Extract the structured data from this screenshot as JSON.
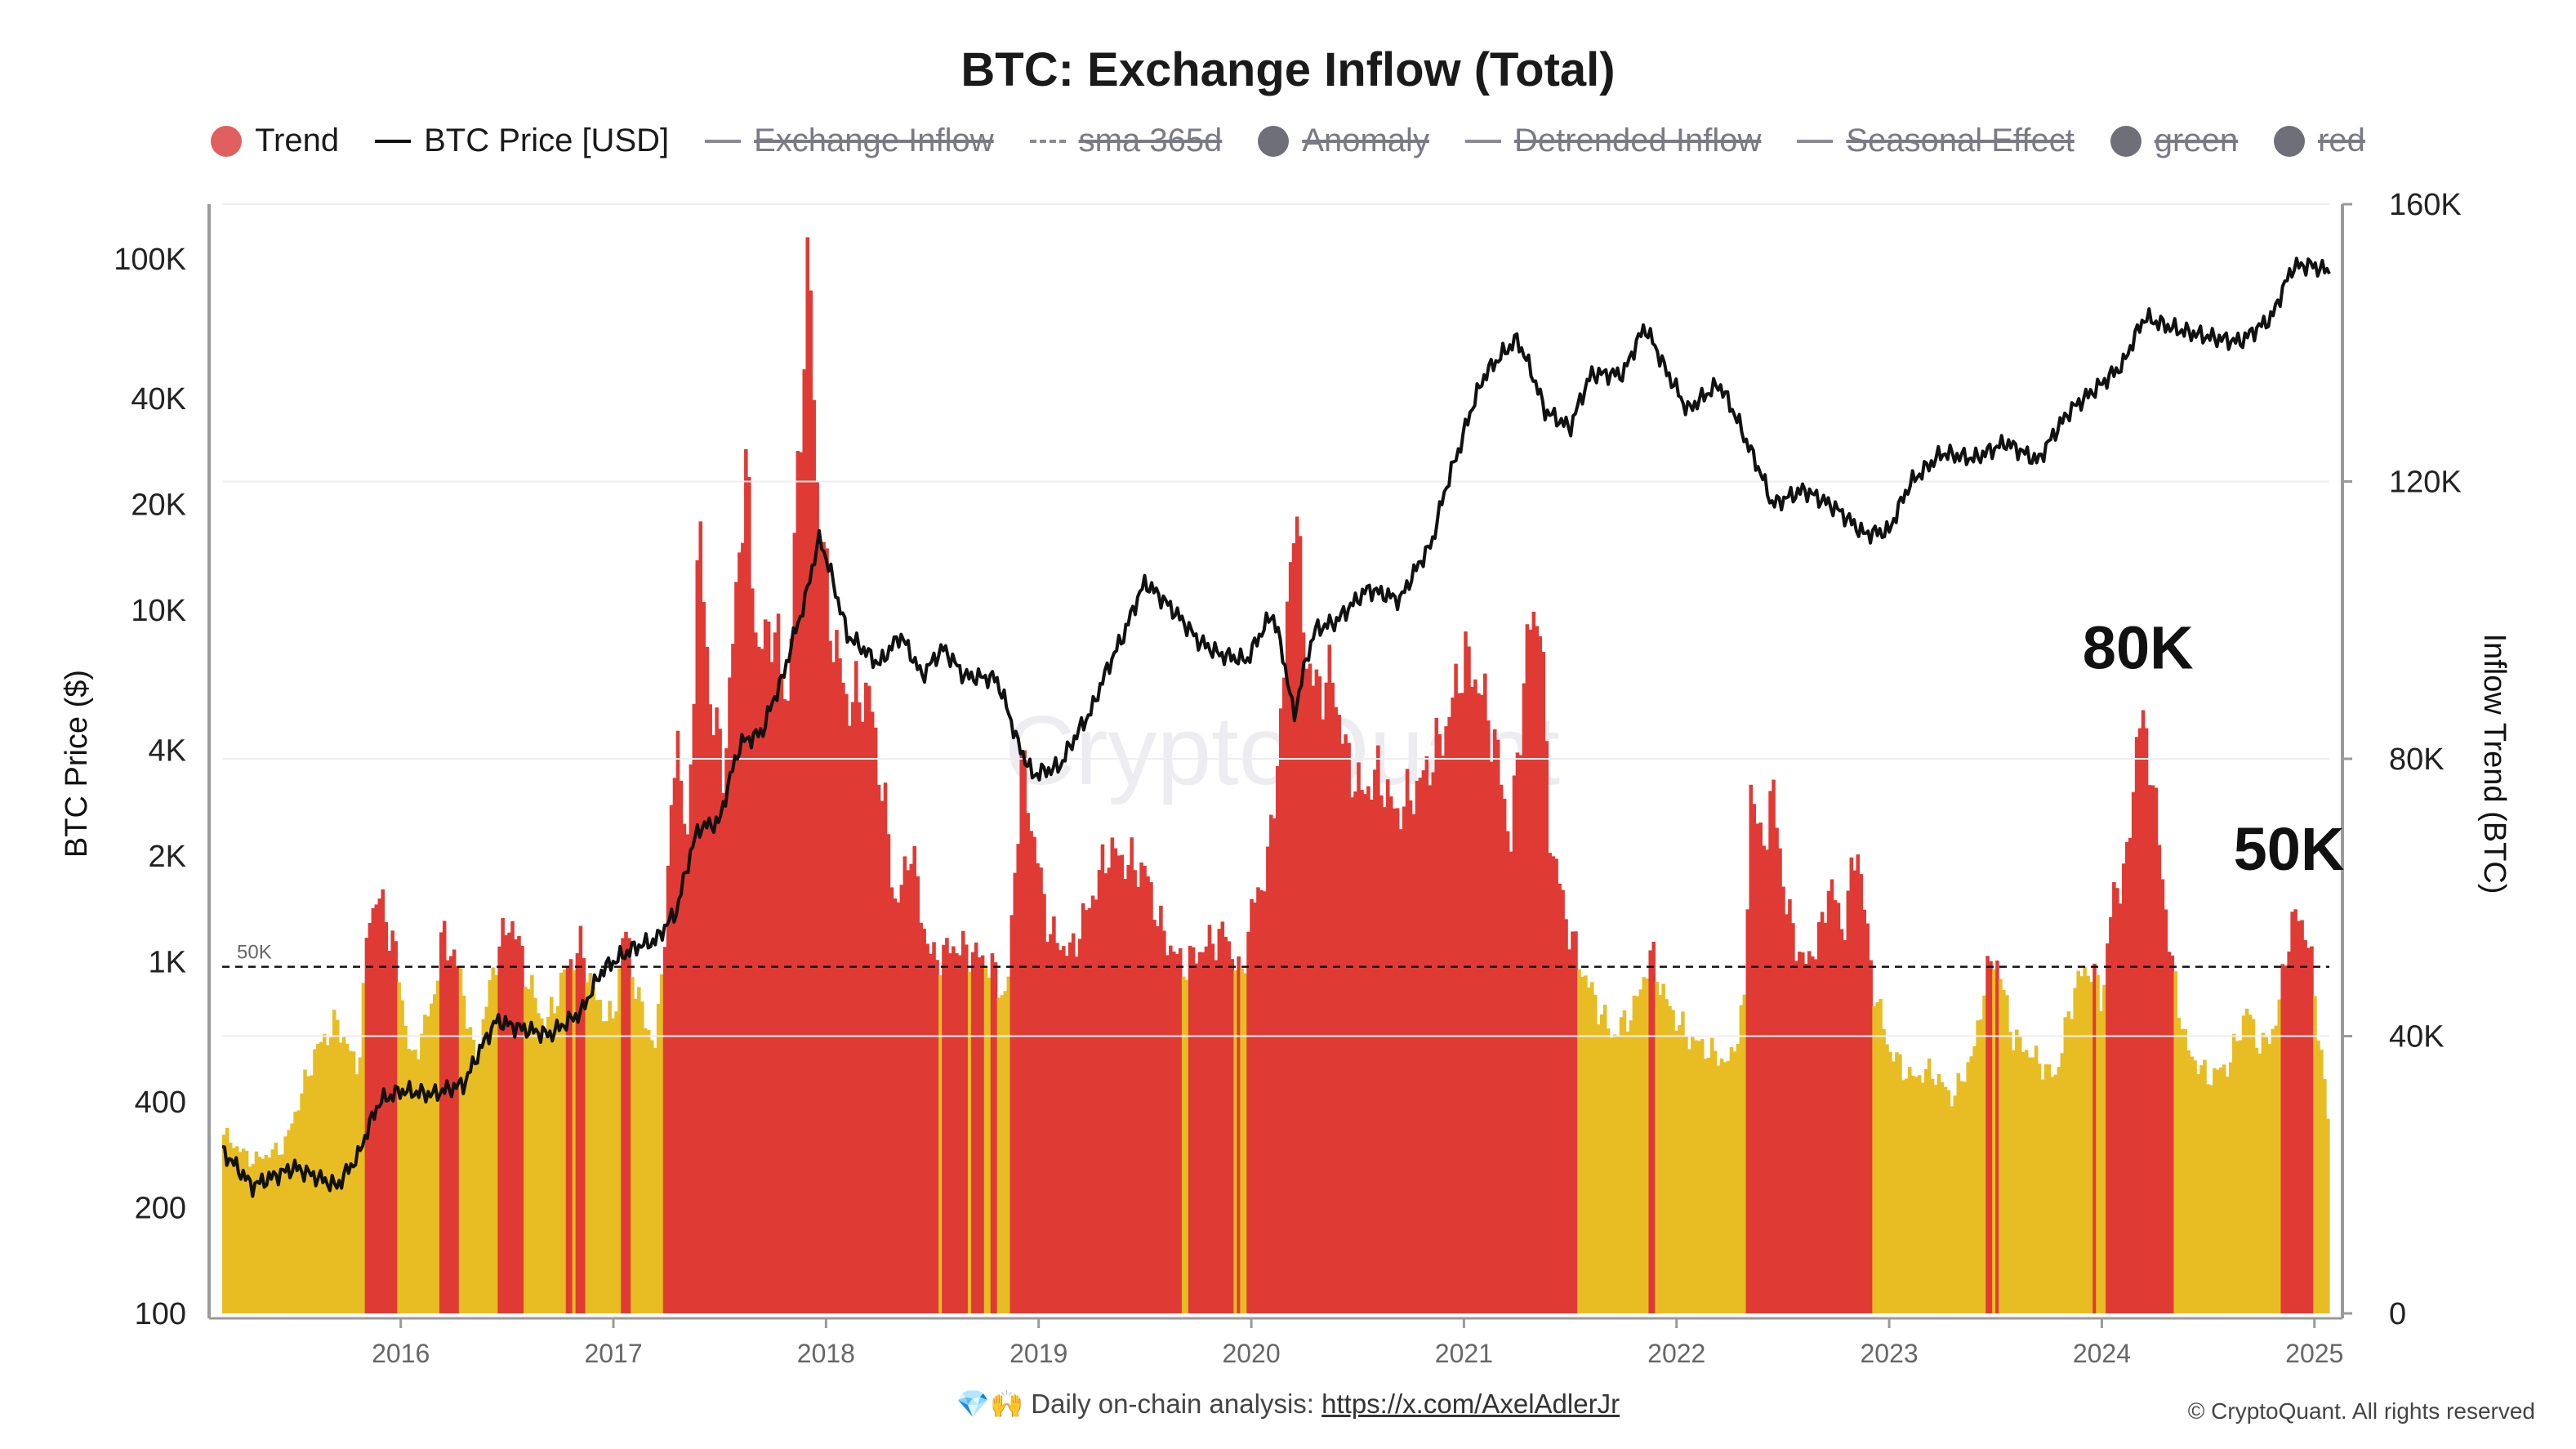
{
  "title": "BTC: Exchange Inflow (Total)",
  "legend": [
    {
      "label": "Trend",
      "type": "dot",
      "color": "#e06060",
      "active": true
    },
    {
      "label": "BTC Price [USD]",
      "type": "line",
      "color": "#111111",
      "active": true
    },
    {
      "label": "Exchange Inflow",
      "type": "line",
      "color": "#8a8a94",
      "active": false
    },
    {
      "label": "sma 365d",
      "type": "dashed",
      "color": "#8a8a94",
      "active": false
    },
    {
      "label": "Anomaly",
      "type": "dot",
      "color": "#6f6f7a",
      "active": false
    },
    {
      "label": "Detrended Inflow",
      "type": "line",
      "color": "#8a8a94",
      "active": false
    },
    {
      "label": "Seasonal Effect",
      "type": "line",
      "color": "#8a8a94",
      "active": false
    },
    {
      "label": "green",
      "type": "dot",
      "color": "#6f6f7a",
      "active": false
    },
    {
      "label": "red",
      "type": "dot",
      "color": "#6f6f7a",
      "active": false
    }
  ],
  "footer": {
    "emoji": "💎🙌",
    "text": "Daily on-chain analysis:",
    "link": "https://x.com/AxelAdlerJr"
  },
  "copyright": "© CryptoQuant. All rights reserved",
  "watermark": "CryptoQuant",
  "colors": {
    "above": "#e03a34",
    "below": "#e8bd24",
    "price": "#111111"
  },
  "chart_data": {
    "type": "bar",
    "title": "BTC: Exchange Inflow (Total)",
    "y_left_label": "BTC Price ($)",
    "y_right_label": "Inflow Trend (BTC)",
    "y_left_scale": "log",
    "y_left_ticks": [
      "100",
      "200",
      "400",
      "1K",
      "2K",
      "4K",
      "10K",
      "20K",
      "40K",
      "100K"
    ],
    "y_left_tick_values": [
      100,
      200,
      400,
      1000,
      2000,
      4000,
      10000,
      20000,
      40000,
      100000
    ],
    "y_right_ticks": [
      "0",
      "40K",
      "80K",
      "120K",
      "160K"
    ],
    "y_right_tick_values": [
      0,
      40000,
      80000,
      120000,
      160000
    ],
    "y_right_range": [
      0,
      160000
    ],
    "x_range": [
      2015.16,
      2025.07
    ],
    "x_ticks": [
      "2016",
      "2017",
      "2018",
      "2019",
      "2020",
      "2021",
      "2022",
      "2023",
      "2024",
      "2025"
    ],
    "x_tick_values": [
      2016,
      2017,
      2018,
      2019,
      2020,
      2021,
      2022,
      2023,
      2024,
      2025
    ],
    "threshold": {
      "value": 50000,
      "label": "50K"
    },
    "annotations": [
      {
        "text": "80K",
        "x": 2024.17,
        "y": 93000
      },
      {
        "text": "50K",
        "x": 2024.88,
        "y": 64000
      }
    ],
    "inflow_trend": [
      [
        2015.16,
        26000
      ],
      [
        2015.3,
        22000
      ],
      [
        2015.45,
        24000
      ],
      [
        2015.6,
        38000
      ],
      [
        2015.7,
        42000
      ],
      [
        2015.8,
        35000
      ],
      [
        2015.85,
        58000
      ],
      [
        2015.9,
        60000
      ],
      [
        2015.97,
        53000
      ],
      [
        2016.05,
        36000
      ],
      [
        2016.15,
        45000
      ],
      [
        2016.2,
        55000
      ],
      [
        2016.28,
        49000
      ],
      [
        2016.35,
        36000
      ],
      [
        2016.45,
        52000
      ],
      [
        2016.52,
        57000
      ],
      [
        2016.6,
        48000
      ],
      [
        2016.68,
        41000
      ],
      [
        2016.78,
        50000
      ],
      [
        2016.85,
        53000
      ],
      [
        2016.92,
        45000
      ],
      [
        2017.0,
        42000
      ],
      [
        2017.05,
        56000
      ],
      [
        2017.12,
        45000
      ],
      [
        2017.2,
        38000
      ],
      [
        2017.25,
        60000
      ],
      [
        2017.3,
        85000
      ],
      [
        2017.35,
        65000
      ],
      [
        2017.4,
        115000
      ],
      [
        2017.45,
        90000
      ],
      [
        2017.52,
        78000
      ],
      [
        2017.58,
        105000
      ],
      [
        2017.62,
        123000
      ],
      [
        2017.68,
        95000
      ],
      [
        2017.75,
        100000
      ],
      [
        2017.82,
        88000
      ],
      [
        2017.88,
        130000
      ],
      [
        2017.92,
        153000
      ],
      [
        2017.96,
        118000
      ],
      [
        2018.02,
        100000
      ],
      [
        2018.1,
        88000
      ],
      [
        2018.2,
        90000
      ],
      [
        2018.28,
        72000
      ],
      [
        2018.33,
        58000
      ],
      [
        2018.4,
        68000
      ],
      [
        2018.45,
        57000
      ],
      [
        2018.5,
        51000
      ],
      [
        2018.6,
        53000
      ],
      [
        2018.7,
        52000
      ],
      [
        2018.78,
        50000
      ],
      [
        2018.85,
        45000
      ],
      [
        2018.92,
        80000
      ],
      [
        2018.98,
        68000
      ],
      [
        2019.05,
        55000
      ],
      [
        2019.15,
        52000
      ],
      [
        2019.25,
        60000
      ],
      [
        2019.33,
        67000
      ],
      [
        2019.42,
        65000
      ],
      [
        2019.5,
        64000
      ],
      [
        2019.58,
        55000
      ],
      [
        2019.68,
        50000
      ],
      [
        2019.78,
        53000
      ],
      [
        2019.88,
        55000
      ],
      [
        2019.95,
        48000
      ],
      [
        2020.0,
        58000
      ],
      [
        2020.08,
        65000
      ],
      [
        2020.15,
        90000
      ],
      [
        2020.2,
        118000
      ],
      [
        2020.26,
        95000
      ],
      [
        2020.3,
        90000
      ],
      [
        2020.38,
        92000
      ],
      [
        2020.45,
        80000
      ],
      [
        2020.52,
        75000
      ],
      [
        2020.6,
        78000
      ],
      [
        2020.68,
        72000
      ],
      [
        2020.78,
        76000
      ],
      [
        2020.85,
        80000
      ],
      [
        2020.92,
        85000
      ],
      [
        2021.0,
        95000
      ],
      [
        2021.08,
        90000
      ],
      [
        2021.15,
        82000
      ],
      [
        2021.22,
        68000
      ],
      [
        2021.3,
        98000
      ],
      [
        2021.36,
        102000
      ],
      [
        2021.4,
        70000
      ],
      [
        2021.48,
        57000
      ],
      [
        2021.55,
        50000
      ],
      [
        2021.62,
        45000
      ],
      [
        2021.7,
        40000
      ],
      [
        2021.8,
        44000
      ],
      [
        2021.88,
        52000
      ],
      [
        2021.95,
        45000
      ],
      [
        2022.05,
        40000
      ],
      [
        2022.15,
        38000
      ],
      [
        2022.25,
        36000
      ],
      [
        2022.32,
        45000
      ],
      [
        2022.35,
        78000
      ],
      [
        2022.4,
        66000
      ],
      [
        2022.45,
        76000
      ],
      [
        2022.52,
        58000
      ],
      [
        2022.6,
        50000
      ],
      [
        2022.68,
        55000
      ],
      [
        2022.72,
        63000
      ],
      [
        2022.78,
        55000
      ],
      [
        2022.85,
        68000
      ],
      [
        2022.92,
        48000
      ],
      [
        2023.0,
        38000
      ],
      [
        2023.1,
        34000
      ],
      [
        2023.2,
        35000
      ],
      [
        2023.3,
        31000
      ],
      [
        2023.4,
        38000
      ],
      [
        2023.45,
        48000
      ],
      [
        2023.5,
        52000
      ],
      [
        2023.58,
        40000
      ],
      [
        2023.68,
        37000
      ],
      [
        2023.78,
        34000
      ],
      [
        2023.88,
        48000
      ],
      [
        2023.95,
        50000
      ],
      [
        2024.0,
        45000
      ],
      [
        2024.05,
        60000
      ],
      [
        2024.12,
        65000
      ],
      [
        2024.17,
        86000
      ],
      [
        2024.22,
        82000
      ],
      [
        2024.28,
        65000
      ],
      [
        2024.32,
        52000
      ],
      [
        2024.4,
        38000
      ],
      [
        2024.5,
        34000
      ],
      [
        2024.6,
        36000
      ],
      [
        2024.68,
        44000
      ],
      [
        2024.75,
        38000
      ],
      [
        2024.82,
        42000
      ],
      [
        2024.88,
        55000
      ],
      [
        2024.93,
        58000
      ],
      [
        2024.98,
        52000
      ],
      [
        2025.03,
        38000
      ],
      [
        2025.07,
        26000
      ]
    ],
    "btc_price": [
      [
        2015.16,
        290
      ],
      [
        2015.3,
        230
      ],
      [
        2015.5,
        260
      ],
      [
        2015.7,
        230
      ],
      [
        2015.8,
        280
      ],
      [
        2015.9,
        400
      ],
      [
        2016.0,
        430
      ],
      [
        2016.15,
        420
      ],
      [
        2016.3,
        450
      ],
      [
        2016.45,
        680
      ],
      [
        2016.55,
        650
      ],
      [
        2016.7,
        620
      ],
      [
        2016.85,
        720
      ],
      [
        2016.95,
        950
      ],
      [
        2017.0,
        1000
      ],
      [
        2017.1,
        1100
      ],
      [
        2017.2,
        1150
      ],
      [
        2017.3,
        1400
      ],
      [
        2017.4,
        2400
      ],
      [
        2017.5,
        2500
      ],
      [
        2017.6,
        4200
      ],
      [
        2017.7,
        4500
      ],
      [
        2017.8,
        6500
      ],
      [
        2017.9,
        10500
      ],
      [
        2017.97,
        16000
      ],
      [
        2018.05,
        11000
      ],
      [
        2018.1,
        8500
      ],
      [
        2018.25,
        7000
      ],
      [
        2018.35,
        8500
      ],
      [
        2018.45,
        6500
      ],
      [
        2018.55,
        7800
      ],
      [
        2018.65,
        6500
      ],
      [
        2018.8,
        6400
      ],
      [
        2018.9,
        4200
      ],
      [
        2018.97,
        3400
      ],
      [
        2019.1,
        3600
      ],
      [
        2019.25,
        5200
      ],
      [
        2019.4,
        8500
      ],
      [
        2019.5,
        12000
      ],
      [
        2019.6,
        10500
      ],
      [
        2019.75,
        8200
      ],
      [
        2019.85,
        7500
      ],
      [
        2019.98,
        7200
      ],
      [
        2020.1,
        9800
      ],
      [
        2020.2,
        4900
      ],
      [
        2020.3,
        8800
      ],
      [
        2020.4,
        9300
      ],
      [
        2020.55,
        11500
      ],
      [
        2020.7,
        10700
      ],
      [
        2020.85,
        15500
      ],
      [
        2020.98,
        29000
      ],
      [
        2021.1,
        47000
      ],
      [
        2021.25,
        59000
      ],
      [
        2021.38,
        37000
      ],
      [
        2021.5,
        33000
      ],
      [
        2021.6,
        47000
      ],
      [
        2021.75,
        47000
      ],
      [
        2021.85,
        64000
      ],
      [
        2021.95,
        48000
      ],
      [
        2022.05,
        37000
      ],
      [
        2022.2,
        44000
      ],
      [
        2022.33,
        30000
      ],
      [
        2022.45,
        20000
      ],
      [
        2022.6,
        22000
      ],
      [
        2022.75,
        19500
      ],
      [
        2022.88,
        16500
      ],
      [
        2023.0,
        16800
      ],
      [
        2023.1,
        23000
      ],
      [
        2023.25,
        28000
      ],
      [
        2023.4,
        27000
      ],
      [
        2023.55,
        30000
      ],
      [
        2023.7,
        26500
      ],
      [
        2023.85,
        37000
      ],
      [
        2023.98,
        43000
      ],
      [
        2024.1,
        50000
      ],
      [
        2024.2,
        68000
      ],
      [
        2024.35,
        63000
      ],
      [
        2024.5,
        60000
      ],
      [
        2024.65,
        58000
      ],
      [
        2024.8,
        68000
      ],
      [
        2024.9,
        95000
      ],
      [
        2024.98,
        96000
      ],
      [
        2025.07,
        92000
      ]
    ]
  }
}
